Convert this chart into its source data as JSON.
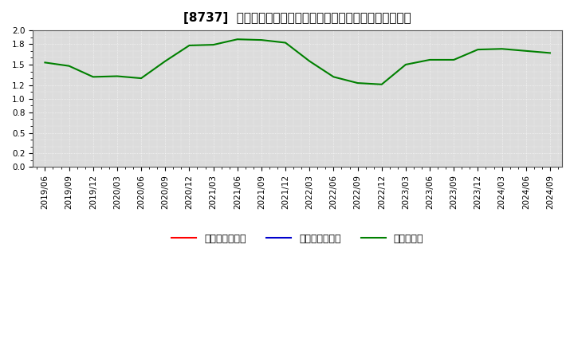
{
  "title": "[8737]  売上債権回転率、買入債務回転率、在庫回転率の推移",
  "x_labels": [
    "2019/06",
    "2019/09",
    "2019/12",
    "2020/03",
    "2020/06",
    "2020/09",
    "2020/12",
    "2021/03",
    "2021/06",
    "2021/09",
    "2021/12",
    "2022/03",
    "2022/06",
    "2022/09",
    "2022/12",
    "2023/03",
    "2023/06",
    "2023/09",
    "2023/12",
    "2024/03",
    "2024/06",
    "2024/09"
  ],
  "inventory_turnover": [
    1.53,
    1.48,
    1.32,
    1.33,
    1.3,
    1.55,
    1.78,
    1.79,
    1.87,
    1.86,
    1.82,
    1.55,
    1.32,
    1.23,
    1.21,
    1.5,
    1.57,
    1.57,
    1.72,
    1.73,
    1.7,
    1.67
  ],
  "receivables_turnover": [],
  "payables_turnover": [],
  "line_color_inventory": "#008000",
  "line_color_receivables": "#ff0000",
  "line_color_payables": "#0000cd",
  "ylim": [
    0.0,
    2.0
  ],
  "yticks": [
    0.0,
    0.2,
    0.5,
    0.8,
    1.0,
    1.2,
    1.5,
    1.8,
    2.0
  ],
  "bg_color": "#ffffff",
  "plot_bg_color": "#dcdcdc",
  "grid_color": "#ffffff",
  "title_fontsize": 11,
  "tick_fontsize": 7.5,
  "legend_labels": [
    "売上債権回転率",
    "買入債務回転率",
    "在庫回転率"
  ]
}
